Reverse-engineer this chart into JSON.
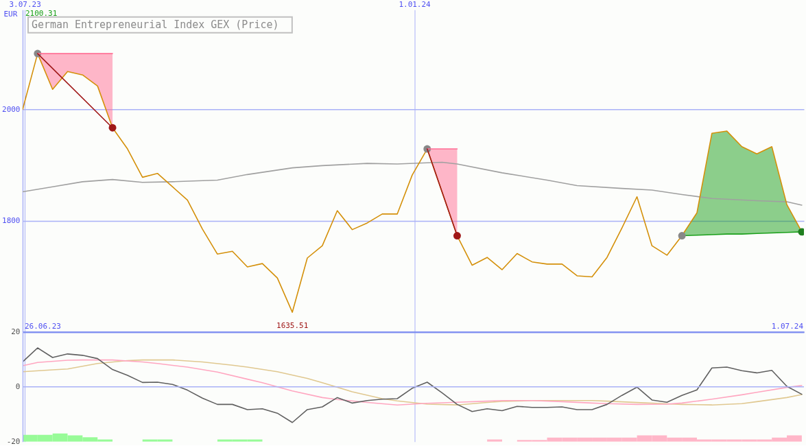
{
  "chart_data": [
    {
      "type": "line",
      "title": "German Entrepreneurial Index GEX (Price)",
      "ylabel": "EUR",
      "x": [
        "2023-07-02",
        "2023-07-09",
        "2023-07-16",
        "2023-07-23",
        "2023-07-30",
        "2023-08-06",
        "2023-08-13",
        "2023-08-20",
        "2023-08-27",
        "2023-09-03",
        "2023-09-10",
        "2023-09-17",
        "2023-09-24",
        "2023-10-01",
        "2023-10-08",
        "2023-10-15",
        "2023-10-22",
        "2023-10-29",
        "2023-11-05",
        "2023-11-12",
        "2023-11-19",
        "2023-11-26",
        "2023-12-03",
        "2023-12-10",
        "2023-12-17",
        "2023-12-24",
        "2023-12-31",
        "2024-01-07",
        "2024-01-14",
        "2024-01-21",
        "2024-01-28",
        "2024-02-04",
        "2024-02-11",
        "2024-02-18",
        "2024-02-25",
        "2024-03-03",
        "2024-03-10",
        "2024-03-17",
        "2024-03-24",
        "2024-03-31",
        "2024-04-07",
        "2024-04-14",
        "2024-04-21",
        "2024-04-28",
        "2024-05-05",
        "2024-05-12",
        "2024-05-19",
        "2024-05-26",
        "2024-06-02",
        "2024-06-09",
        "2024-06-16",
        "2024-06-23",
        "2024-06-30"
      ],
      "xlim": [
        "2023-07-02",
        "2024-07-01"
      ],
      "xticks": [
        {
          "value": "2023-07-03",
          "label": "3.07.23"
        },
        {
          "value": "2024-01-01",
          "label": "1.01.24"
        }
      ],
      "ylim": [
        1600,
        2179
      ],
      "yticks": [
        1800,
        2000
      ],
      "grid": true,
      "series": [
        {
          "x": [
            "2023-07-02",
            "2023-07-16",
            "2023-07-30",
            "2023-08-13",
            "2023-08-27",
            "2023-09-10",
            "2023-10-01",
            "2023-10-15",
            "2023-11-05",
            "2023-11-19",
            "2023-12-10",
            "2023-12-24",
            "2024-01-07",
            "2024-01-14",
            "2024-01-21",
            "2024-02-11",
            "2024-03-03",
            "2024-03-17",
            "2024-04-07",
            "2024-04-21",
            "2024-05-05",
            "2024-05-19",
            "2024-06-09",
            "2024-06-23",
            "2024-06-30"
          ],
          "values": [
            1852,
            1861,
            1870,
            1874,
            1869,
            1870,
            1873,
            1883,
            1895,
            1899,
            1903,
            1902,
            1904,
            1905,
            1902,
            1886,
            1873,
            1863,
            1858,
            1855,
            1847,
            1840,
            1836,
            1834,
            1828
          ],
          "color": "#a0a0a0"
        },
        {
          "values": [
            2000,
            2100.31,
            2036,
            2068,
            2062,
            2042,
            1967,
            1929,
            1878,
            1885,
            1861,
            1837,
            1785,
            1740,
            1745,
            1717,
            1723,
            1697,
            1635.51,
            1733,
            1755,
            1818,
            1784,
            1796,
            1812,
            1812,
            1882,
            1929,
            1851,
            1773,
            1720,
            1734,
            1712,
            1741,
            1726,
            1722,
            1722,
            1701,
            1699,
            1734,
            1787,
            1843,
            1755,
            1738,
            1773,
            1814,
            1957,
            1961,
            1933,
            1920,
            1933,
            1829,
            1780
          ],
          "color": "#d4900a"
        },
        {
          "x": [
            "2024-05-05",
            "2024-05-12",
            "2024-05-19",
            "2024-05-26",
            "2024-06-02",
            "2024-06-09",
            "2024-06-16",
            "2024-06-23",
            "2024-06-30"
          ],
          "values": [
            1773,
            1774,
            1775,
            1776,
            1776,
            1777,
            1778,
            1779,
            1780
          ],
          "lower": [
            1773,
            1774,
            1775,
            1776,
            1776,
            1777,
            1778,
            1779,
            1780
          ],
          "upper": [
            1773,
            1814,
            1957,
            1961,
            1933,
            1920,
            1933,
            1829,
            1780
          ],
          "color": "#1ca01c"
        },
        {
          "type": "scatter",
          "marker": "circle",
          "x": [
            "2023-07-09",
            "2023-08-13",
            "2024-01-07",
            "2024-01-21",
            "2024-05-05",
            "2024-06-30"
          ],
          "values": [
            2100.31,
            1967,
            1929,
            1773,
            1773,
            1780
          ],
          "colors": [
            "#888888",
            "#a01818",
            "#888888",
            "#a01818",
            "#888888",
            "#1f7f1f"
          ]
        },
        {
          "x": [
            "2023-07-09",
            "2023-07-16",
            "2023-07-23",
            "2023-07-30",
            "2023-08-06",
            "2023-08-13"
          ],
          "values": [
            2100.31,
            2100.31,
            2100.31,
            2100.31,
            2100.31,
            2100.31
          ],
          "lower": [
            2100.31,
            2036,
            2068,
            2062,
            2042,
            1967
          ],
          "upper": [
            2100.31,
            2100.31,
            2100.31,
            2100.31,
            2100.31,
            2100.31
          ],
          "color": "#ff6f95"
        },
        {
          "x": [
            "2024-01-07",
            "2024-01-14",
            "2024-01-21"
          ],
          "values": [
            1929,
            1929,
            1929
          ],
          "lower": [
            1929,
            1851,
            1773
          ],
          "upper": [
            1929,
            1929,
            1929
          ],
          "color": "#ff6f95"
        },
        {
          "x": [
            "2023-07-09",
            "2023-08-13"
          ],
          "values": [
            2100.31,
            1967
          ],
          "color": "#a01818"
        },
        {
          "x": [
            "2024-01-07",
            "2024-01-21"
          ],
          "values": [
            1929,
            1773
          ],
          "color": "#a01818"
        }
      ],
      "annotations": [
        "2100.31",
        "26.06.23",
        "1.07.24",
        {
          "text": "1635.51",
          "x": "2023-11-05",
          "y": 1635.51
        }
      ]
    },
    {
      "type": "line",
      "x": [
        "2023-07-02",
        "2023-07-09",
        "2023-07-16",
        "2023-07-23",
        "2023-07-30",
        "2023-08-06",
        "2023-08-13",
        "2023-08-20",
        "2023-08-27",
        "2023-09-03",
        "2023-09-10",
        "2023-09-17",
        "2023-09-24",
        "2023-10-01",
        "2023-10-08",
        "2023-10-15",
        "2023-10-22",
        "2023-10-29",
        "2023-11-05",
        "2023-11-12",
        "2023-11-19",
        "2023-11-26",
        "2023-12-03",
        "2023-12-10",
        "2023-12-17",
        "2023-12-24",
        "2023-12-31",
        "2024-01-07",
        "2024-01-14",
        "2024-01-21",
        "2024-01-28",
        "2024-02-04",
        "2024-02-11",
        "2024-02-18",
        "2024-02-25",
        "2024-03-03",
        "2024-03-10",
        "2024-03-17",
        "2024-03-24",
        "2024-03-31",
        "2024-04-07",
        "2024-04-14",
        "2024-04-21",
        "2024-04-28",
        "2024-05-05",
        "2024-05-12",
        "2024-05-19",
        "2024-05-26",
        "2024-06-02",
        "2024-06-09",
        "2024-06-16",
        "2024-06-23",
        "2024-06-30"
      ],
      "xlim": [
        "2023-07-02",
        "2024-07-01"
      ],
      "xticks": [
        {
          "value": "2023-07-03",
          "label": null
        },
        {
          "value": "2024-01-01",
          "label": null
        }
      ],
      "ylim": [
        -20,
        20
      ],
      "yticks": [
        -20,
        0,
        20
      ],
      "grid": "x",
      "tick_labels": "y",
      "ref_lines": [
        {
          "axis": "y",
          "value": 0,
          "color": "#a9b1f7"
        }
      ],
      "series": [
        {
          "type": "bar",
          "x": [
            "2023-07-05T12:00",
            "2023-07-12T12:00",
            "2023-07-19T12:00",
            "2023-07-26T12:00",
            "2023-08-02T12:00",
            "2023-08-09T12:00",
            "2023-08-30T12:00",
            "2023-09-06T12:00",
            "2023-10-04T12:00",
            "2023-10-11T12:00",
            "2023-10-18T12:00",
            "2024-02-07T12:00",
            "2024-02-21T12:00",
            "2024-02-28T12:00",
            "2024-03-06T12:00",
            "2024-03-13T12:00",
            "2024-03-20T12:00",
            "2024-03-27T12:00",
            "2024-04-03T12:00",
            "2024-04-10T12:00",
            "2024-04-17T12:00",
            "2024-04-24T12:00",
            "2024-05-01T12:00",
            "2024-05-08T12:00",
            "2024-05-15T12:00",
            "2024-05-22T12:00",
            "2024-05-29T12:00",
            "2024-06-05T12:00",
            "2024-06-12T12:00",
            "2024-06-19T12:00",
            "2024-06-26T12:00"
          ],
          "values": [
            2.5,
            2.5,
            3.0,
            2.3,
            1.6,
            0.8,
            0.8,
            0.8,
            0.8,
            0.8,
            0.8,
            0.8,
            0.6,
            0.6,
            1.5,
            1.5,
            1.5,
            1.5,
            1.5,
            1.5,
            2.3,
            2.3,
            1.5,
            1.5,
            0.8,
            0.8,
            0.8,
            0.8,
            0.8,
            1.5,
            2.3
          ],
          "base": [
            -20,
            -20,
            -20,
            -20,
            -20,
            -20,
            -20,
            -20,
            -20,
            -20,
            -20,
            -20,
            -20,
            -20,
            -20,
            -20,
            -20,
            -20,
            -20,
            -20,
            -20,
            -20,
            -20,
            -20,
            -20,
            -20,
            -20,
            -20,
            -20,
            -20,
            -20
          ],
          "colors": [
            "#98fb98",
            "#98fb98",
            "#98fb98",
            "#98fb98",
            "#98fb98",
            "#98fb98",
            "#98fb98",
            "#98fb98",
            "#98fb98",
            "#98fb98",
            "#98fb98",
            "#ffb6c8",
            "#ffb6c8",
            "#ffb6c8",
            "#ffb6c8",
            "#ffb6c8",
            "#ffb6c8",
            "#ffb6c8",
            "#ffb6c8",
            "#ffb6c8",
            "#ffb6c8",
            "#ffb6c8",
            "#ffb6c8",
            "#ffb6c8",
            "#ffb6c8",
            "#ffb6c8",
            "#ffb6c8",
            "#ffb6c8",
            "#ffb6c8",
            "#ffb6c8",
            "#ffb6c8"
          ]
        },
        {
          "x": [
            "2023-07-02",
            "2023-07-16",
            "2023-07-23",
            "2023-08-06",
            "2023-08-20",
            "2023-08-27",
            "2023-09-10",
            "2023-09-24",
            "2023-10-08",
            "2023-10-15",
            "2023-10-29",
            "2023-11-12",
            "2023-11-19",
            "2023-12-03",
            "2023-12-17",
            "2023-12-24",
            "2024-01-07",
            "2024-01-21",
            "2024-02-04",
            "2024-02-11",
            "2024-02-25",
            "2024-03-24",
            "2024-03-31",
            "2024-04-14",
            "2024-04-28",
            "2024-05-05",
            "2024-05-19",
            "2024-06-02",
            "2024-06-09",
            "2024-06-23",
            "2024-06-30"
          ],
          "values": [
            5.5,
            6.2,
            6.5,
            8.5,
            9.6,
            9.8,
            9.8,
            9.1,
            7.9,
            7.2,
            5.5,
            3.1,
            1.5,
            -1.8,
            -4.3,
            -5.1,
            -6.3,
            -6.6,
            -5.7,
            -5.3,
            -5.0,
            -5.0,
            -5.2,
            -5.7,
            -6.2,
            -6.4,
            -6.6,
            -6.1,
            -5.4,
            -3.9,
            -2.8
          ],
          "color": "#e0c890"
        },
        {
          "x": [
            "2023-07-02",
            "2023-07-09",
            "2023-07-23",
            "2023-07-30",
            "2023-08-13",
            "2023-08-27",
            "2023-09-03",
            "2023-09-17",
            "2023-10-01",
            "2023-10-15",
            "2023-10-22",
            "2023-11-05",
            "2023-11-19",
            "2023-11-26",
            "2023-12-10",
            "2023-12-24",
            "2023-12-31",
            "2024-01-07",
            "2024-01-21",
            "2024-02-04",
            "2024-02-11",
            "2024-02-25",
            "2024-03-10",
            "2024-03-24",
            "2024-03-31",
            "2024-04-14",
            "2024-04-28",
            "2024-05-05",
            "2024-05-19",
            "2024-06-02",
            "2024-06-09",
            "2024-06-23",
            "2024-06-30"
          ],
          "values": [
            7.7,
            8.9,
            9.7,
            9.8,
            9.8,
            9.1,
            8.5,
            7.2,
            5.4,
            2.8,
            1.5,
            -1.5,
            -3.9,
            -4.6,
            -5.7,
            -6.6,
            -6.3,
            -6.0,
            -5.6,
            -5.2,
            -5.0,
            -5.0,
            -5.4,
            -5.9,
            -6.1,
            -6.4,
            -6.3,
            -5.9,
            -4.5,
            -2.9,
            -2.0,
            -0.2,
            0.5
          ],
          "color": "#ffa6c0"
        },
        {
          "values": [
            9.1,
            14.2,
            10.7,
            12.0,
            11.5,
            10.3,
            6.3,
            4.2,
            1.6,
            1.7,
            0.9,
            -1.2,
            -4.1,
            -6.4,
            -6.4,
            -8.3,
            -8.0,
            -9.6,
            -13.0,
            -8.3,
            -7.3,
            -3.9,
            -5.9,
            -5.0,
            -4.5,
            -4.3,
            -0.5,
            1.7,
            -2.2,
            -6.4,
            -9.0,
            -8.0,
            -8.7,
            -7.1,
            -7.5,
            -7.5,
            -7.3,
            -8.3,
            -8.3,
            -6.4,
            -3.1,
            -0.1,
            -4.8,
            -5.6,
            -3.1,
            -1.1,
            6.9,
            7.2,
            5.9,
            5.1,
            6.0,
            0.2,
            -2.7
          ],
          "color": "#606060"
        }
      ]
    }
  ]
}
